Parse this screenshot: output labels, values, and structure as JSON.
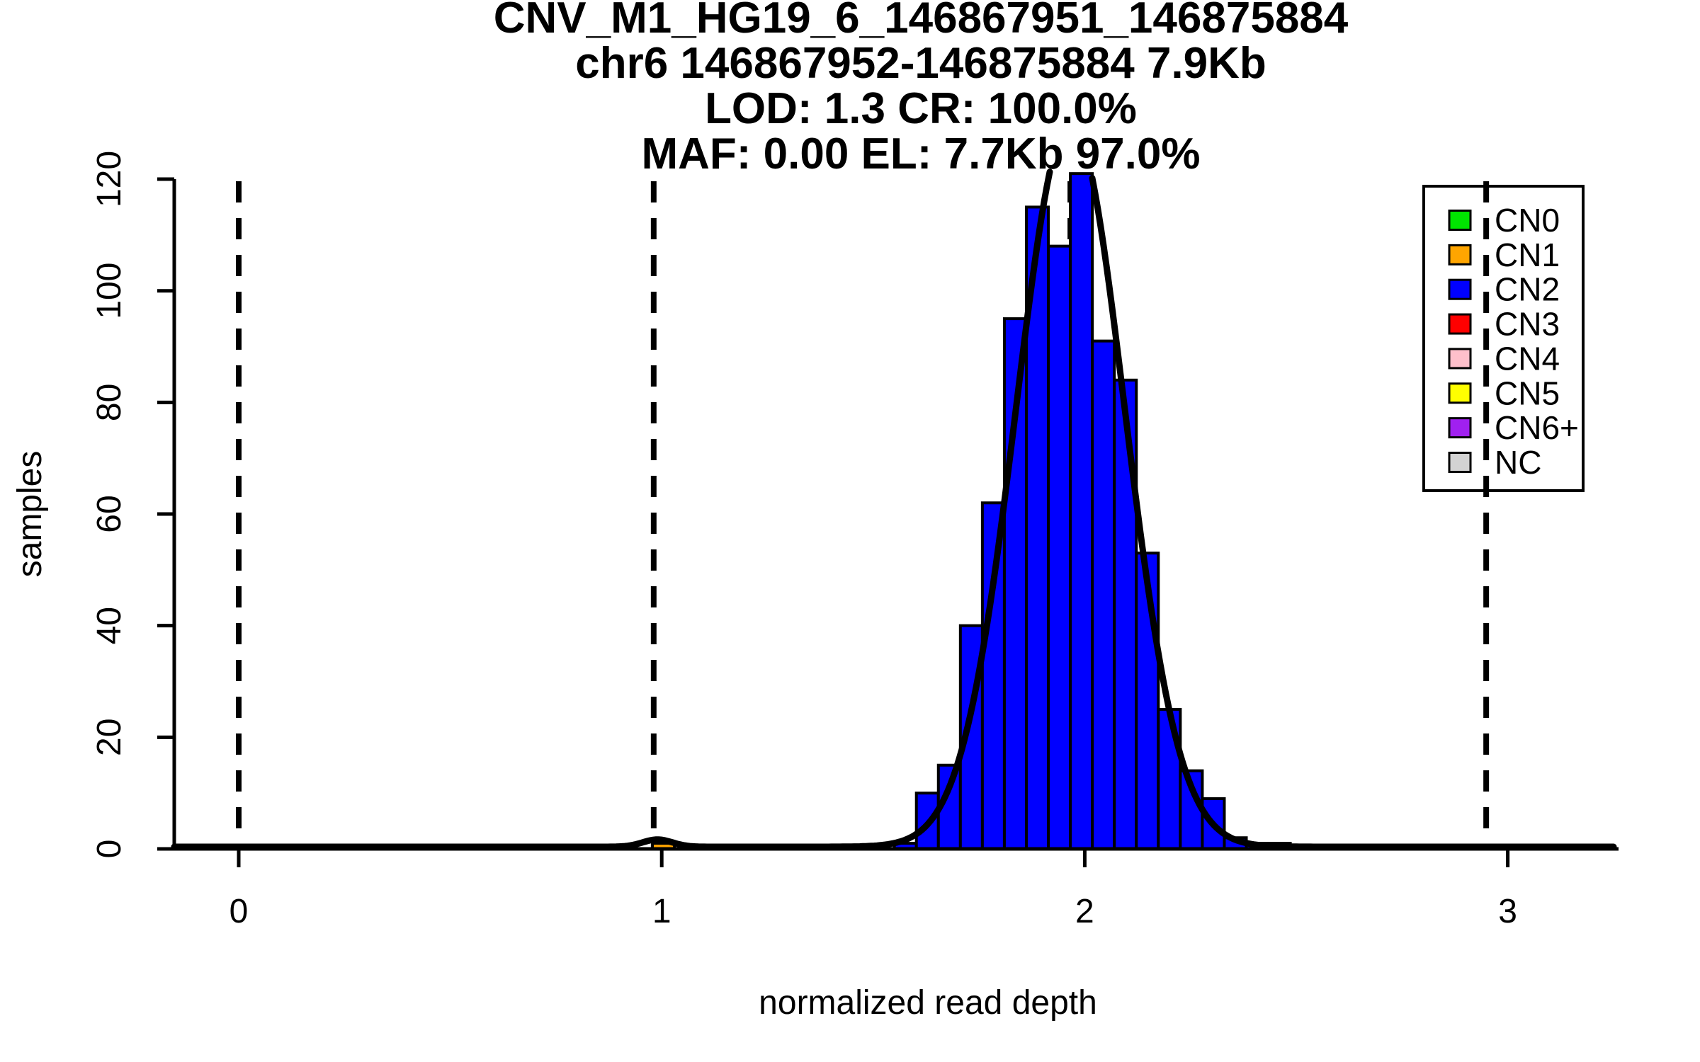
{
  "figure": {
    "title_lines": [
      "CNV_M1_HG19_6_146867951_146875884",
      "chr6 146867952-146875884 7.9Kb",
      "LOD: 1.3 CR: 100.0%",
      "MAF: 0.00 EL: 7.7Kb 97.0%"
    ],
    "x_axis": {
      "label": "normalized read depth",
      "ticks": [
        0,
        1,
        2,
        3
      ]
    },
    "y_axis": {
      "label": "samples",
      "ticks": [
        0,
        20,
        40,
        60,
        80,
        100,
        120
      ]
    },
    "legend": {
      "entries": [
        {
          "label": "CN0",
          "color": "#00E500"
        },
        {
          "label": "CN1",
          "color": "#FFA500"
        },
        {
          "label": "CN2",
          "color": "#0000FF"
        },
        {
          "label": "CN3",
          "color": "#FF0000"
        },
        {
          "label": "CN4",
          "color": "#FFC0CB"
        },
        {
          "label": "CN5",
          "color": "#FFFF00"
        },
        {
          "label": "CN6+",
          "color": "#A020F0"
        },
        {
          "label": "NC",
          "color": "#D3D3D3"
        }
      ]
    }
  },
  "chart_data": {
    "type": "bar",
    "subtype": "histogram-with-gaussian-fit",
    "title": "CNV_M1_HG19_6_146867951_146875884",
    "xlabel": "normalized read depth",
    "ylabel": "samples",
    "xlim": [
      -0.18,
      3.26
    ],
    "ylim": [
      0,
      121
    ],
    "grid": false,
    "histogram": {
      "series_name": "CN2",
      "color": "#0000FF",
      "border_color": "#000000",
      "bin_start": 1.55,
      "bin_width": 0.052,
      "bin_edges": [
        1.55,
        1.602,
        1.654,
        1.706,
        1.758,
        1.81,
        1.862,
        1.914,
        1.966,
        2.018,
        2.07,
        2.122,
        2.174,
        2.226,
        2.278,
        2.33,
        2.382,
        2.434,
        2.486
      ],
      "counts": [
        1,
        10,
        15,
        40,
        62,
        95,
        115,
        108,
        121,
        91,
        84,
        53,
        25,
        14,
        9,
        2,
        1,
        1
      ]
    },
    "outlier_bar": {
      "series_name": "CN1",
      "color": "#FFA500",
      "border_color": "#000000",
      "bin_start": 0.978,
      "bin_width": 0.052,
      "count": 1
    },
    "fit_curve": {
      "shape": "gaussian",
      "color": "#000000",
      "mean": 1.966,
      "sd": 0.128,
      "amplitude": 130,
      "clip_max": 121,
      "minor_peak": {
        "mean": 0.99,
        "sd": 0.035,
        "amplitude": 1.3
      }
    },
    "dashed_guides_x": [
      0.0,
      0.981,
      1.966,
      2.949
    ],
    "legend_position": "top-right"
  }
}
